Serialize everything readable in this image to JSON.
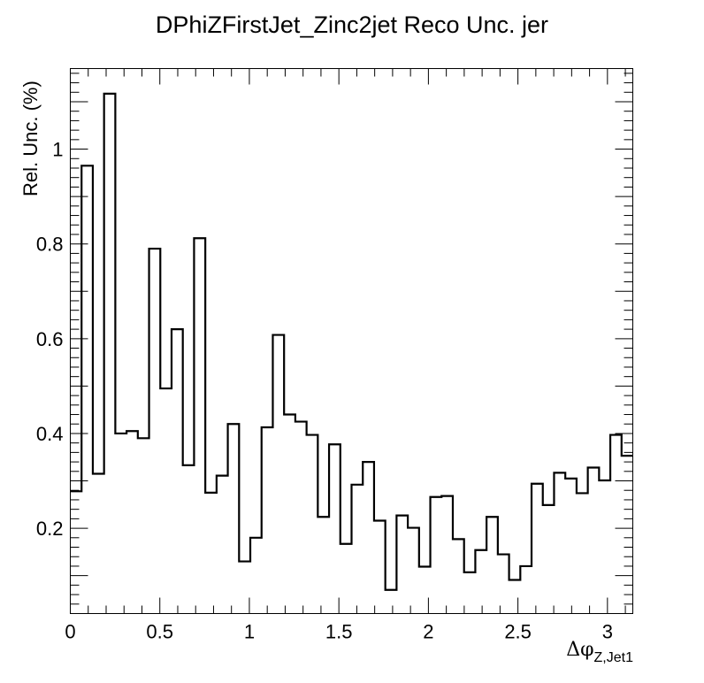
{
  "chart_data": {
    "type": "histogram",
    "title": "DPhiZFirstJet_Zinc2jet Reco Unc. jer",
    "xlabel": "Δφ",
    "xlabel_subscript": "Z,Jet1",
    "ylabel": "Rel. Unc. (%)",
    "xlim": [
      0,
      3.1416
    ],
    "ylim": [
      0.02,
      1.17
    ],
    "x_ticks": [
      {
        "value": 0,
        "label": "0"
      },
      {
        "value": 0.5,
        "label": "0.5"
      },
      {
        "value": 1,
        "label": "1"
      },
      {
        "value": 1.5,
        "label": "1.5"
      },
      {
        "value": 2,
        "label": "2"
      },
      {
        "value": 2.5,
        "label": "2.5"
      },
      {
        "value": 3,
        "label": "3"
      }
    ],
    "y_ticks": [
      {
        "value": 0.2,
        "label": "0.2"
      },
      {
        "value": 0.4,
        "label": "0.4"
      },
      {
        "value": 0.6,
        "label": "0.6"
      },
      {
        "value": 0.8,
        "label": "0.8"
      },
      {
        "value": 1.0,
        "label": "1"
      }
    ],
    "bins": 50,
    "values": [
      0.278,
      0.965,
      0.315,
      1.117,
      0.4,
      0.405,
      0.39,
      0.79,
      0.495,
      0.62,
      0.333,
      0.812,
      0.275,
      0.311,
      0.42,
      0.13,
      0.18,
      0.413,
      0.608,
      0.44,
      0.425,
      0.397,
      0.224,
      0.377,
      0.167,
      0.292,
      0.34,
      0.216,
      0.07,
      0.227,
      0.201,
      0.119,
      0.266,
      0.268,
      0.177,
      0.107,
      0.154,
      0.224,
      0.145,
      0.091,
      0.12,
      0.294,
      0.249,
      0.317,
      0.305,
      0.274,
      0.328,
      0.301,
      0.397,
      0.353
    ]
  }
}
